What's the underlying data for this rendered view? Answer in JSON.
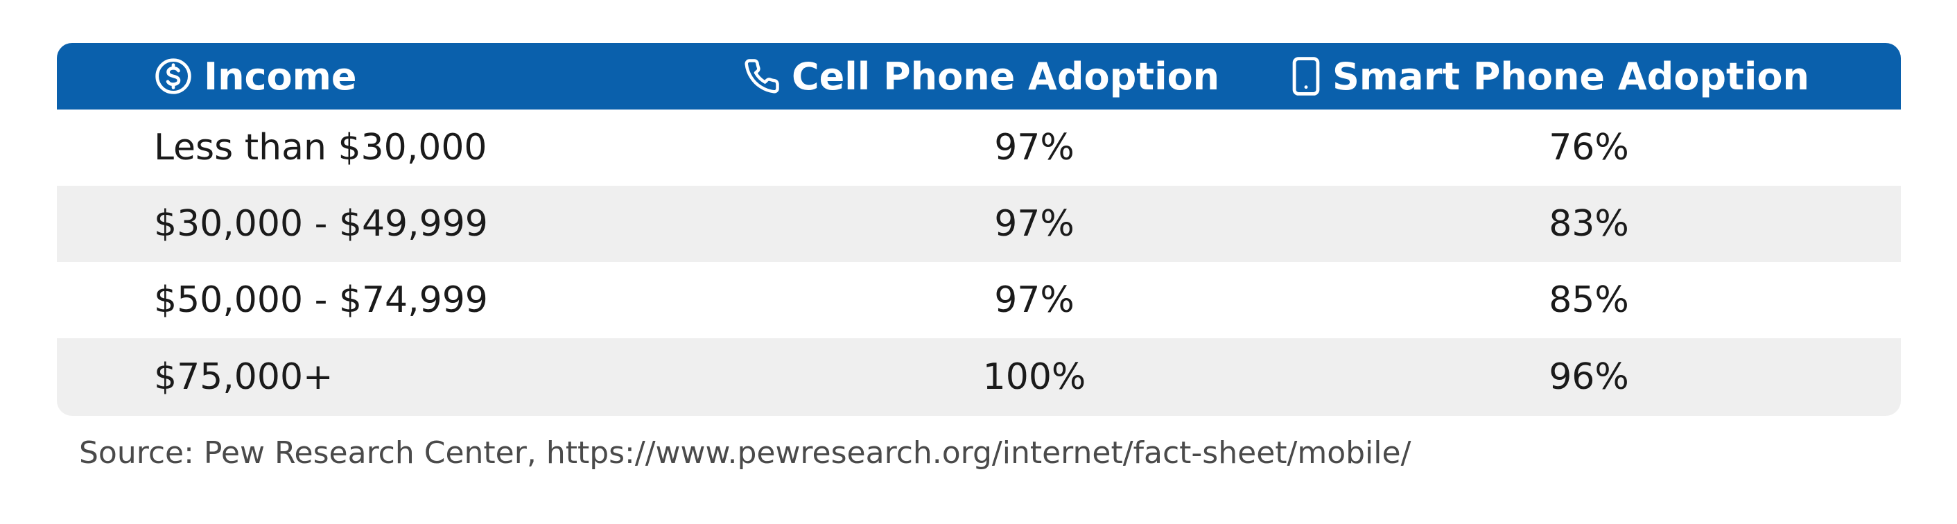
{
  "chart_data": {
    "type": "table",
    "columns": [
      "Income",
      "Cell Phone Adoption",
      "Smart Phone Adoption"
    ],
    "column_icons": [
      "dollar-circle-icon",
      "phone-icon",
      "smartphone-icon"
    ],
    "rows": [
      [
        "Less than $30,000",
        "97%",
        "76%"
      ],
      [
        "$30,000 - $49,999",
        "97%",
        "83%"
      ],
      [
        "$50,000 - $74,999",
        "97%",
        "85%"
      ],
      [
        "$75,000+",
        "100%",
        "96%"
      ]
    ],
    "source": "Source: Pew Research Center, https://www.pewresearch.org/internet/fact-sheet/mobile/"
  },
  "colors": {
    "header_background": "#0a60ac",
    "header_text": "#ffffff",
    "alt_row_background": "#efefef",
    "text": "#1a1a1a",
    "source_text": "#4a4a4a"
  }
}
